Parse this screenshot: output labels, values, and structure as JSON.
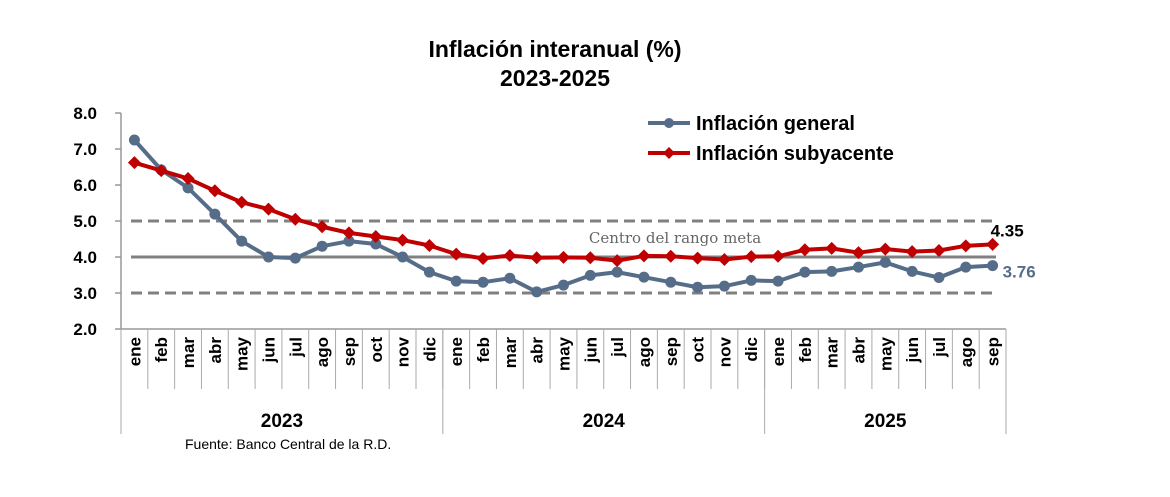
{
  "chart_data": {
    "type": "line",
    "title": "Inflación interanual (%)",
    "subtitle": "2023-2025",
    "xlabel": "",
    "ylabel": "",
    "ylim": [
      2.0,
      8.0
    ],
    "yticks": [
      "2.0",
      "3.0",
      "4.0",
      "5.0",
      "6.0",
      "7.0",
      "8.0"
    ],
    "yticks_values": [
      2,
      3,
      4,
      5,
      6,
      7,
      8
    ],
    "grid": false,
    "legend_position": "top-right",
    "categories": [
      "ene",
      "feb",
      "mar",
      "abr",
      "may",
      "jun",
      "jul",
      "ago",
      "sep",
      "oct",
      "nov",
      "dic",
      "ene",
      "feb",
      "mar",
      "abr",
      "may",
      "jun",
      "jul",
      "ago",
      "sep",
      "oct",
      "nov",
      "dic",
      "ene",
      "feb",
      "mar",
      "abr",
      "may",
      "jun",
      "jul",
      "ago",
      "sep"
    ],
    "year_groups": [
      {
        "label": "2023",
        "count": 12
      },
      {
        "label": "2024",
        "count": 12
      },
      {
        "label": "2025",
        "count": 9
      }
    ],
    "series": [
      {
        "name": "Inflación general",
        "color": "#566d89",
        "marker": "circle",
        "values": [
          7.25,
          6.42,
          5.92,
          5.19,
          4.44,
          4.0,
          3.97,
          4.3,
          4.44,
          4.36,
          4.0,
          3.58,
          3.33,
          3.3,
          3.41,
          3.03,
          3.22,
          3.49,
          3.58,
          3.44,
          3.3,
          3.16,
          3.19,
          3.35,
          3.33,
          3.58,
          3.6,
          3.72,
          3.85,
          3.6,
          3.43,
          3.72,
          3.76
        ]
      },
      {
        "name": "Inflación subyacente",
        "color": "#c00000",
        "marker": "diamond",
        "values": [
          6.62,
          6.4,
          6.18,
          5.84,
          5.52,
          5.33,
          5.05,
          4.84,
          4.67,
          4.57,
          4.47,
          4.32,
          4.08,
          3.96,
          4.04,
          3.98,
          3.99,
          3.98,
          3.9,
          4.03,
          4.02,
          3.97,
          3.93,
          4.01,
          4.02,
          4.2,
          4.24,
          4.12,
          4.22,
          4.15,
          4.18,
          4.31,
          4.35
        ]
      }
    ],
    "reference_lines": [
      {
        "value": 5.0,
        "style": "dashed",
        "color": "#808080"
      },
      {
        "value": 4.0,
        "style": "solid",
        "color": "#808080"
      },
      {
        "value": 3.0,
        "style": "dashed",
        "color": "#808080"
      }
    ],
    "annotations": [
      {
        "text": "Centro del rango meta",
        "near_value": 4.0
      },
      {
        "text": "4.35",
        "series": "Inflación subyacente",
        "color": "#000000"
      },
      {
        "text": "3.76",
        "series": "Inflación general",
        "color": "#566d89"
      }
    ],
    "source": "Fuente: Banco Central de la R.D."
  }
}
